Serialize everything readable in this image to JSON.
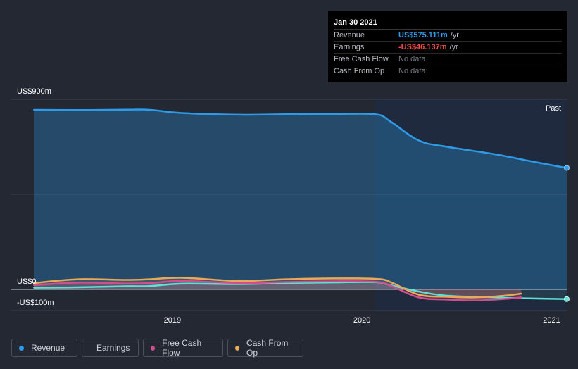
{
  "tooltip": {
    "date": "Jan 30 2021",
    "rows": [
      {
        "label": "Revenue",
        "value": "US$575.111m",
        "unit": "/yr",
        "color": "#2e9be8"
      },
      {
        "label": "Earnings",
        "value": "-US$46.137m",
        "unit": "/yr",
        "color": "#f04a4a"
      },
      {
        "label": "Free Cash Flow",
        "value": "No data",
        "unit": "",
        "color": ""
      },
      {
        "label": "Cash From Op",
        "value": "No data",
        "unit": "",
        "color": ""
      }
    ]
  },
  "past_label": "Past",
  "legend": [
    {
      "label": "Revenue",
      "color": "#2e9be8"
    },
    {
      "label": "Earnings",
      "color": "#5ee0d6"
    },
    {
      "label": "Free Cash Flow",
      "color": "#d04f8f"
    },
    {
      "label": "Cash From Op",
      "color": "#e8a95a"
    }
  ],
  "chart_data": {
    "type": "line",
    "ylabel_top": "US$900m",
    "ylabel_zero": "US$0",
    "ylabel_bottom": "-US$100m",
    "ylim": [
      -100,
      900
    ],
    "xlim": [
      2018.15,
      2021.08
    ],
    "x_ticks": [
      2019,
      2020,
      2021
    ],
    "x_tick_labels": [
      "2019",
      "2020",
      "2021"
    ],
    "past_region_start": 2020.07,
    "series": [
      {
        "name": "Revenue",
        "color": "#2e9be8",
        "x": [
          2018.27,
          2018.5,
          2018.75,
          2018.88,
          2019.05,
          2019.35,
          2019.6,
          2019.85,
          2020.07,
          2020.15,
          2020.3,
          2020.45,
          2020.7,
          2020.9,
          2021.08
        ],
        "y": [
          850,
          849,
          851,
          850,
          835,
          827,
          829,
          830,
          829,
          795,
          705,
          675,
          640,
          605,
          575
        ]
      },
      {
        "name": "Earnings",
        "color": "#5ee0d6",
        "x": [
          2018.27,
          2018.5,
          2018.75,
          2018.88,
          2019.05,
          2019.35,
          2019.6,
          2019.85,
          2020.07,
          2020.15,
          2020.3,
          2020.45,
          2020.7,
          2020.85,
          2021.08
        ],
        "y": [
          8,
          10,
          15,
          16,
          27,
          25,
          30,
          33,
          34,
          20,
          -10,
          -30,
          -38,
          -42,
          -46
        ]
      },
      {
        "name": "Free Cash Flow",
        "color": "#d04f8f",
        "x": [
          2018.27,
          2018.5,
          2018.75,
          2018.88,
          2019.05,
          2019.35,
          2019.6,
          2019.85,
          2020.07,
          2020.15,
          2020.3,
          2020.45,
          2020.6,
          2020.75,
          2020.84
        ],
        "y": [
          20,
          32,
          28,
          30,
          40,
          30,
          35,
          38,
          36,
          18,
          -38,
          -48,
          -52,
          -45,
          -38
        ]
      },
      {
        "name": "Cash From Op",
        "color": "#e8a95a",
        "x": [
          2018.27,
          2018.5,
          2018.75,
          2018.88,
          2019.05,
          2019.35,
          2019.6,
          2019.85,
          2020.07,
          2020.15,
          2020.3,
          2020.45,
          2020.6,
          2020.75,
          2020.84
        ],
        "y": [
          30,
          48,
          45,
          48,
          55,
          40,
          48,
          52,
          50,
          35,
          -25,
          -35,
          -38,
          -30,
          -20
        ]
      }
    ]
  }
}
